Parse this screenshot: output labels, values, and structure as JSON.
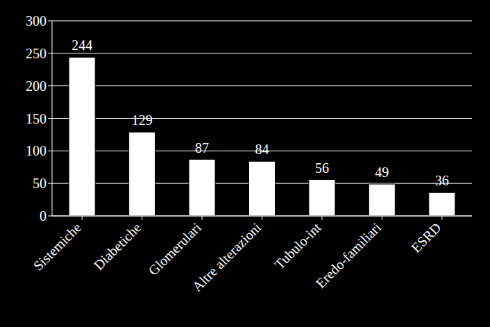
{
  "chart_data": {
    "type": "bar",
    "categories": [
      "Sistemiche",
      "Diabetiche",
      "Glomerulari",
      "Altre alterazioni",
      "Tubulo-int",
      "Eredo-familiari",
      "ESRD"
    ],
    "values": [
      244,
      129,
      87,
      84,
      56,
      49,
      36
    ],
    "color": "#ffffff",
    "ylim": [
      0,
      300
    ],
    "yticks": [
      0,
      50,
      100,
      150,
      200,
      250,
      300
    ],
    "grid": true,
    "data_labels": true
  }
}
